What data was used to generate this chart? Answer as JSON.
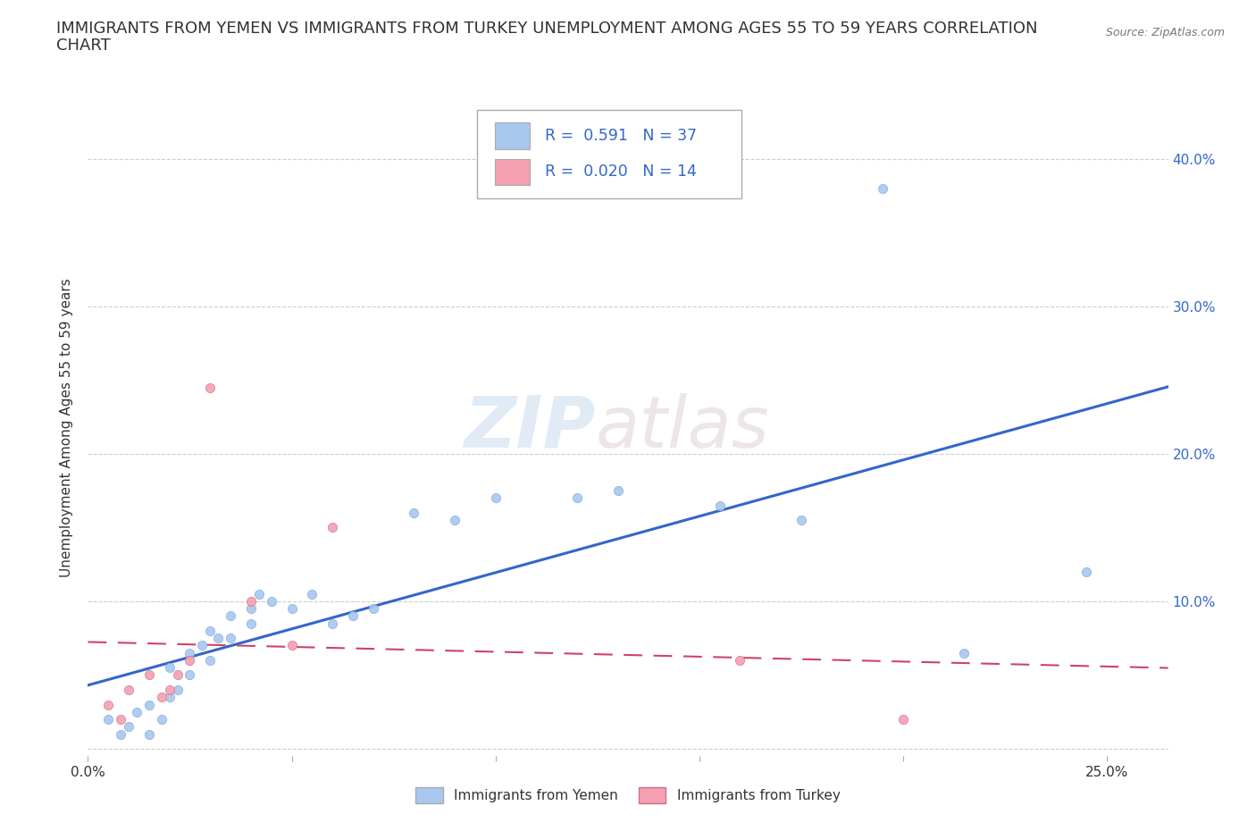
{
  "title_line1": "IMMIGRANTS FROM YEMEN VS IMMIGRANTS FROM TURKEY UNEMPLOYMENT AMONG AGES 55 TO 59 YEARS CORRELATION",
  "title_line2": "CHART",
  "source": "Source: ZipAtlas.com",
  "ylabel": "Unemployment Among Ages 55 to 59 years",
  "xlim": [
    0.0,
    0.265
  ],
  "ylim": [
    -0.005,
    0.44
  ],
  "yticks": [
    0.0,
    0.1,
    0.2,
    0.3,
    0.4
  ],
  "ytick_labels_right": [
    "",
    "10.0%",
    "20.0%",
    "30.0%",
    "40.0%"
  ],
  "xticks": [
    0.0,
    0.05,
    0.1,
    0.15,
    0.2,
    0.25
  ],
  "xtick_labels": [
    "0.0%",
    "",
    "",
    "",
    "",
    "25.0%"
  ],
  "yemen_color": "#a8c8f0",
  "turkey_color": "#f4a0b0",
  "trend_yemen_color": "#3366cc",
  "trend_turkey_color": "#cc4466",
  "watermark_zip": "ZIP",
  "watermark_atlas": "atlas",
  "legend_label_yemen": "Immigrants from Yemen",
  "legend_label_turkey": "Immigrants from Turkey",
  "yemen_x": [
    0.005,
    0.008,
    0.01,
    0.012,
    0.015,
    0.015,
    0.018,
    0.02,
    0.02,
    0.022,
    0.025,
    0.025,
    0.028,
    0.03,
    0.03,
    0.032,
    0.035,
    0.035,
    0.04,
    0.04,
    0.042,
    0.045,
    0.05,
    0.055,
    0.06,
    0.065,
    0.07,
    0.08,
    0.09,
    0.1,
    0.12,
    0.13,
    0.155,
    0.175,
    0.195,
    0.215,
    0.245
  ],
  "yemen_y": [
    0.02,
    0.01,
    0.015,
    0.025,
    0.03,
    0.01,
    0.02,
    0.035,
    0.055,
    0.04,
    0.05,
    0.065,
    0.07,
    0.06,
    0.08,
    0.075,
    0.09,
    0.075,
    0.085,
    0.095,
    0.105,
    0.1,
    0.095,
    0.105,
    0.085,
    0.09,
    0.095,
    0.16,
    0.155,
    0.17,
    0.17,
    0.175,
    0.165,
    0.155,
    0.38,
    0.065,
    0.12
  ],
  "turkey_x": [
    0.005,
    0.008,
    0.01,
    0.015,
    0.018,
    0.02,
    0.022,
    0.025,
    0.03,
    0.04,
    0.05,
    0.06,
    0.16,
    0.2
  ],
  "turkey_y": [
    0.03,
    0.02,
    0.04,
    0.05,
    0.035,
    0.04,
    0.05,
    0.06,
    0.245,
    0.1,
    0.07,
    0.15,
    0.06,
    0.02
  ],
  "background_color": "#ffffff",
  "grid_color": "#cccccc",
  "title_fontsize": 13,
  "axis_label_fontsize": 11,
  "tick_fontsize": 11
}
